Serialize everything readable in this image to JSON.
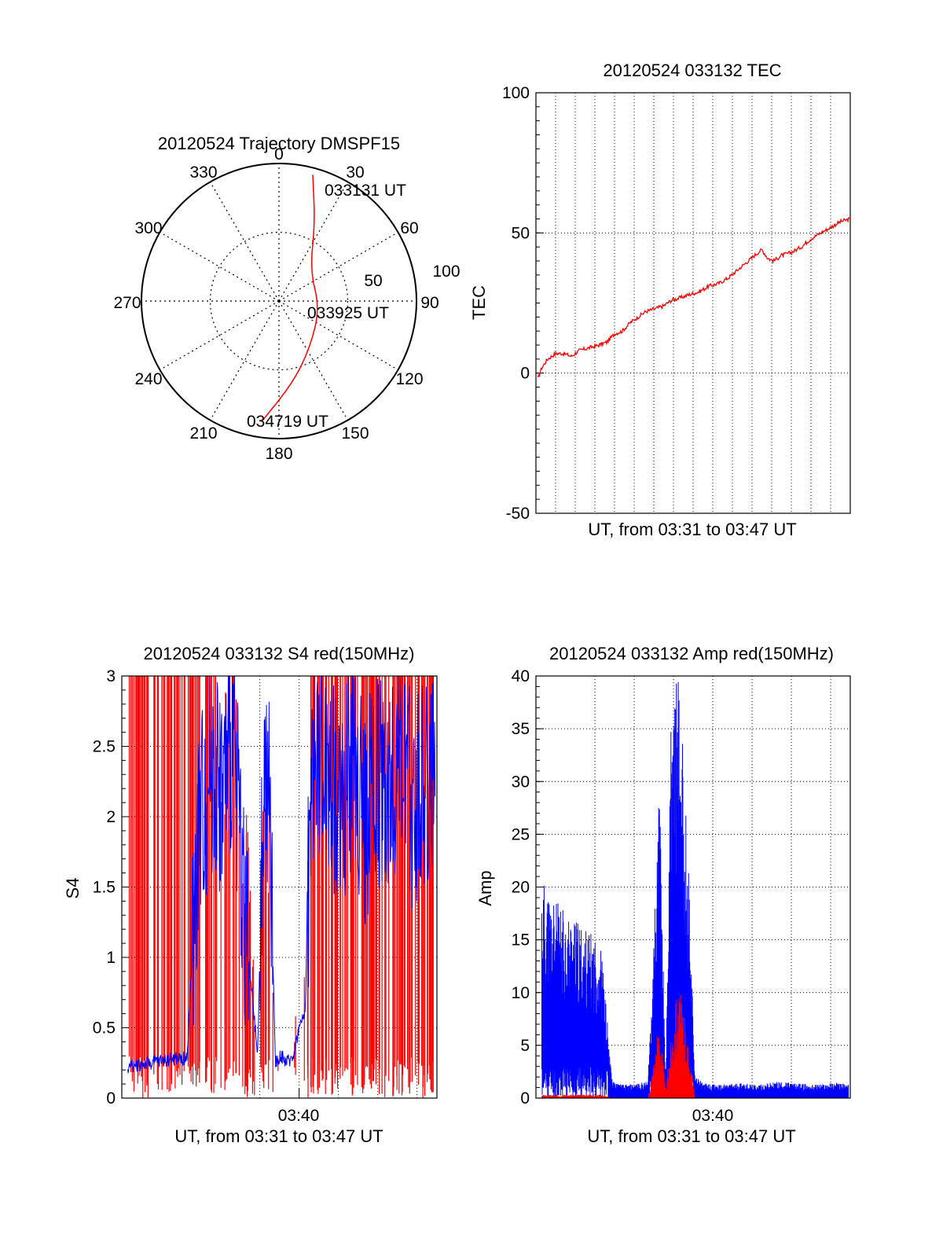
{
  "charts": {
    "trajectory": {
      "title": "20120524 Trajectory DMSPF15",
      "azimuth_labels": [
        "0",
        "30",
        "60",
        "90",
        "120",
        "150",
        "180",
        "210",
        "240",
        "270",
        "300",
        "330"
      ],
      "radius_labels": [
        "50",
        "100"
      ],
      "time_labels": {
        "start": "033131 UT",
        "mid": "033925 UT",
        "end": "034719 UT"
      },
      "track_color": "#ff0000"
    },
    "tec": {
      "title": "20120524 033132 TEC",
      "ylabel": "TEC",
      "xlabel": "UT, from 03:31 to 03:47 UT",
      "yticks": [
        "100",
        "50",
        "0",
        "-50"
      ]
    },
    "s4": {
      "title": "20120524 033132 S4 red(150MHz)",
      "ylabel": "S4",
      "xlabel": "UT, from 03:31 to 03:47 UT",
      "xtick": "03:40",
      "yticks": [
        "3",
        "2.5",
        "2",
        "1.5",
        "1",
        "0.5",
        "0"
      ]
    },
    "amp": {
      "title": "20120524 033132 Amp red(150MHz)",
      "ylabel": "Amp",
      "xlabel": "UT, from 03:31 to 03:47 UT",
      "xtick": "03:40",
      "yticks": [
        "40",
        "35",
        "30",
        "25",
        "20",
        "15",
        "10",
        "5",
        "0"
      ]
    }
  },
  "chart_data": [
    {
      "type": "scatter",
      "title": "20120524 Trajectory DMSPF15",
      "projection": "polar",
      "r_range": [
        0,
        100
      ],
      "series": [
        {
          "values": [
            {
              "azimuth": 15,
              "r": 95,
              "label": "033131 UT"
            },
            {
              "azimuth": 25,
              "r": 62
            },
            {
              "azimuth": 45,
              "r": 32
            },
            {
              "azimuth": 100,
              "r": 30,
              "label": "033925 UT"
            },
            {
              "azimuth": 145,
              "r": 40
            },
            {
              "azimuth": 170,
              "r": 60
            },
            {
              "azimuth": 188,
              "r": 88,
              "label": "034719 UT"
            }
          ]
        }
      ],
      "grid": true
    },
    {
      "type": "line",
      "title": "20120524 033132 TEC",
      "xlabel": "UT, from 03:31 to 03:47 UT",
      "ylabel": "TEC",
      "xlim": [
        3.5167,
        3.7833
      ],
      "ylim": [
        -50,
        100
      ],
      "x": [
        3.5167,
        3.5183,
        3.5217,
        3.5267,
        3.5333,
        3.54,
        3.5467,
        3.5533,
        3.5617,
        3.57,
        3.5767,
        3.5833,
        3.59,
        3.5967,
        3.6033,
        3.61,
        3.6183,
        3.625,
        3.6317,
        3.64,
        3.6467,
        3.655,
        3.6633,
        3.6717,
        3.68,
        3.6883,
        3.6967,
        3.705,
        3.7083,
        3.7133,
        3.7183,
        3.725,
        3.7333,
        3.7417,
        3.75,
        3.7583,
        3.7667,
        3.775,
        3.7833
      ],
      "series": [
        {
          "color": "#ff0000",
          "values": [
            0,
            -2,
            2,
            5,
            7,
            7,
            6,
            8,
            9,
            10,
            11,
            14,
            15,
            18,
            20,
            22,
            23,
            24,
            26,
            27,
            28,
            29,
            31,
            32,
            34,
            37,
            40,
            43,
            44,
            41,
            40,
            42,
            43,
            45,
            48,
            50,
            52,
            54,
            55
          ]
        }
      ],
      "grid": true
    },
    {
      "type": "line",
      "title": "20120524 033132 S4 red(150MHz)",
      "xlabel": "UT, from 03:31 to 03:47 UT",
      "ylabel": "S4",
      "xlim": [
        3.5167,
        3.7833
      ],
      "ylim": [
        0,
        3
      ],
      "x": [
        3.5217,
        3.5317,
        3.5417,
        3.5517,
        3.5617,
        3.5717,
        3.5817,
        3.5917,
        3.6017,
        3.6117,
        3.6217,
        3.6317,
        3.6367,
        3.6417,
        3.6467,
        3.6517,
        3.6567,
        3.6617,
        3.6667,
        3.6717,
        3.6767,
        3.6817,
        3.6917,
        3.7017,
        3.7117,
        3.7217,
        3.7317,
        3.7417,
        3.7517,
        3.7617,
        3.7717,
        3.7817
      ],
      "series": [
        {
          "name": "",
          "color": "#0000ff",
          "values": [
            0.22,
            0.24,
            0.25,
            0.27,
            0.28,
            0.28,
            1.9,
            2.4,
            2.2,
            2.6,
            1.2,
            0.3,
            2.3,
            2.0,
            0.25,
            0.3,
            0.25,
            0.3,
            0.5,
            0.6,
            2.2,
            2.5,
            2.3,
            2.1,
            2.4,
            2.0,
            2.3,
            2.2,
            2.5,
            2.1,
            2.3,
            2.2
          ]
        },
        {
          "name": "",
          "color": "#ff0000",
          "values": [
            3.0,
            3.0,
            3.0,
            3.0,
            3.0,
            3.0,
            3.0,
            3.0,
            2.8,
            3.0,
            2.0,
            0.4,
            2.4,
            2.2,
            0.3,
            0.4,
            0.7,
            0.6,
            0.7,
            0.8,
            3.0,
            3.0,
            3.0,
            3.0,
            3.0,
            3.0,
            3.0,
            3.0,
            3.0,
            3.0,
            3.0,
            3.0
          ]
        }
      ],
      "grid": true
    },
    {
      "type": "line",
      "title": "20120524 033132 Amp red(150MHz)",
      "xlabel": "UT, from 03:31 to 03:47 UT",
      "ylabel": "Amp",
      "xlim": [
        3.5167,
        3.7833
      ],
      "ylim": [
        0,
        40
      ],
      "x": [
        3.5217,
        3.5317,
        3.5417,
        3.5517,
        3.5617,
        3.5717,
        3.5817,
        3.5917,
        3.6017,
        3.6117,
        3.6217,
        3.6267,
        3.6317,
        3.6367,
        3.6417,
        3.6467,
        3.6517,
        3.6567,
        3.6617,
        3.6717,
        3.6817,
        3.6917,
        3.7017,
        3.7117,
        3.7217,
        3.7317,
        3.7417,
        3.7517,
        3.7617,
        3.7717,
        3.7817
      ],
      "series": [
        {
          "name": "",
          "color": "#0000ff",
          "values": [
            20,
            18,
            17,
            16,
            15,
            14,
            1.5,
            1.2,
            1.3,
            1.5,
            29,
            1.0,
            37,
            39,
            31,
            20,
            2.0,
            1.5,
            1.3,
            1.2,
            1.3,
            1.4,
            1.2,
            1.3,
            1.5,
            1.4,
            1.3,
            1.2,
            1.3,
            1.4,
            1.2
          ]
        },
        {
          "name": "",
          "color": "#ff0000",
          "values": [
            0.3,
            0.3,
            0.3,
            0.3,
            0.3,
            0.3,
            0,
            0,
            0,
            0,
            7,
            0.5,
            6,
            10,
            8,
            4,
            0,
            0,
            0,
            0,
            0,
            0,
            0,
            0,
            0,
            0,
            0,
            0,
            0,
            0,
            0
          ]
        }
      ],
      "grid": true
    }
  ]
}
